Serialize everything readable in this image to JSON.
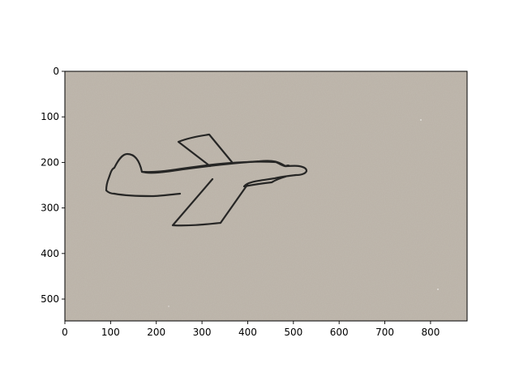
{
  "figure": {
    "x_axis": {
      "range": [
        0,
        880
      ],
      "ticks": [
        0,
        100,
        200,
        300,
        400,
        500,
        600,
        700,
        800
      ]
    },
    "y_axis": {
      "range": [
        0,
        548
      ],
      "inverted": true,
      "ticks": [
        0,
        100,
        200,
        300,
        400,
        500
      ]
    },
    "image": {
      "subject": "hand-drawn-airplane-sketch",
      "paper_color": "#b9b1a6",
      "ink_color": "#1a1a1a"
    }
  }
}
